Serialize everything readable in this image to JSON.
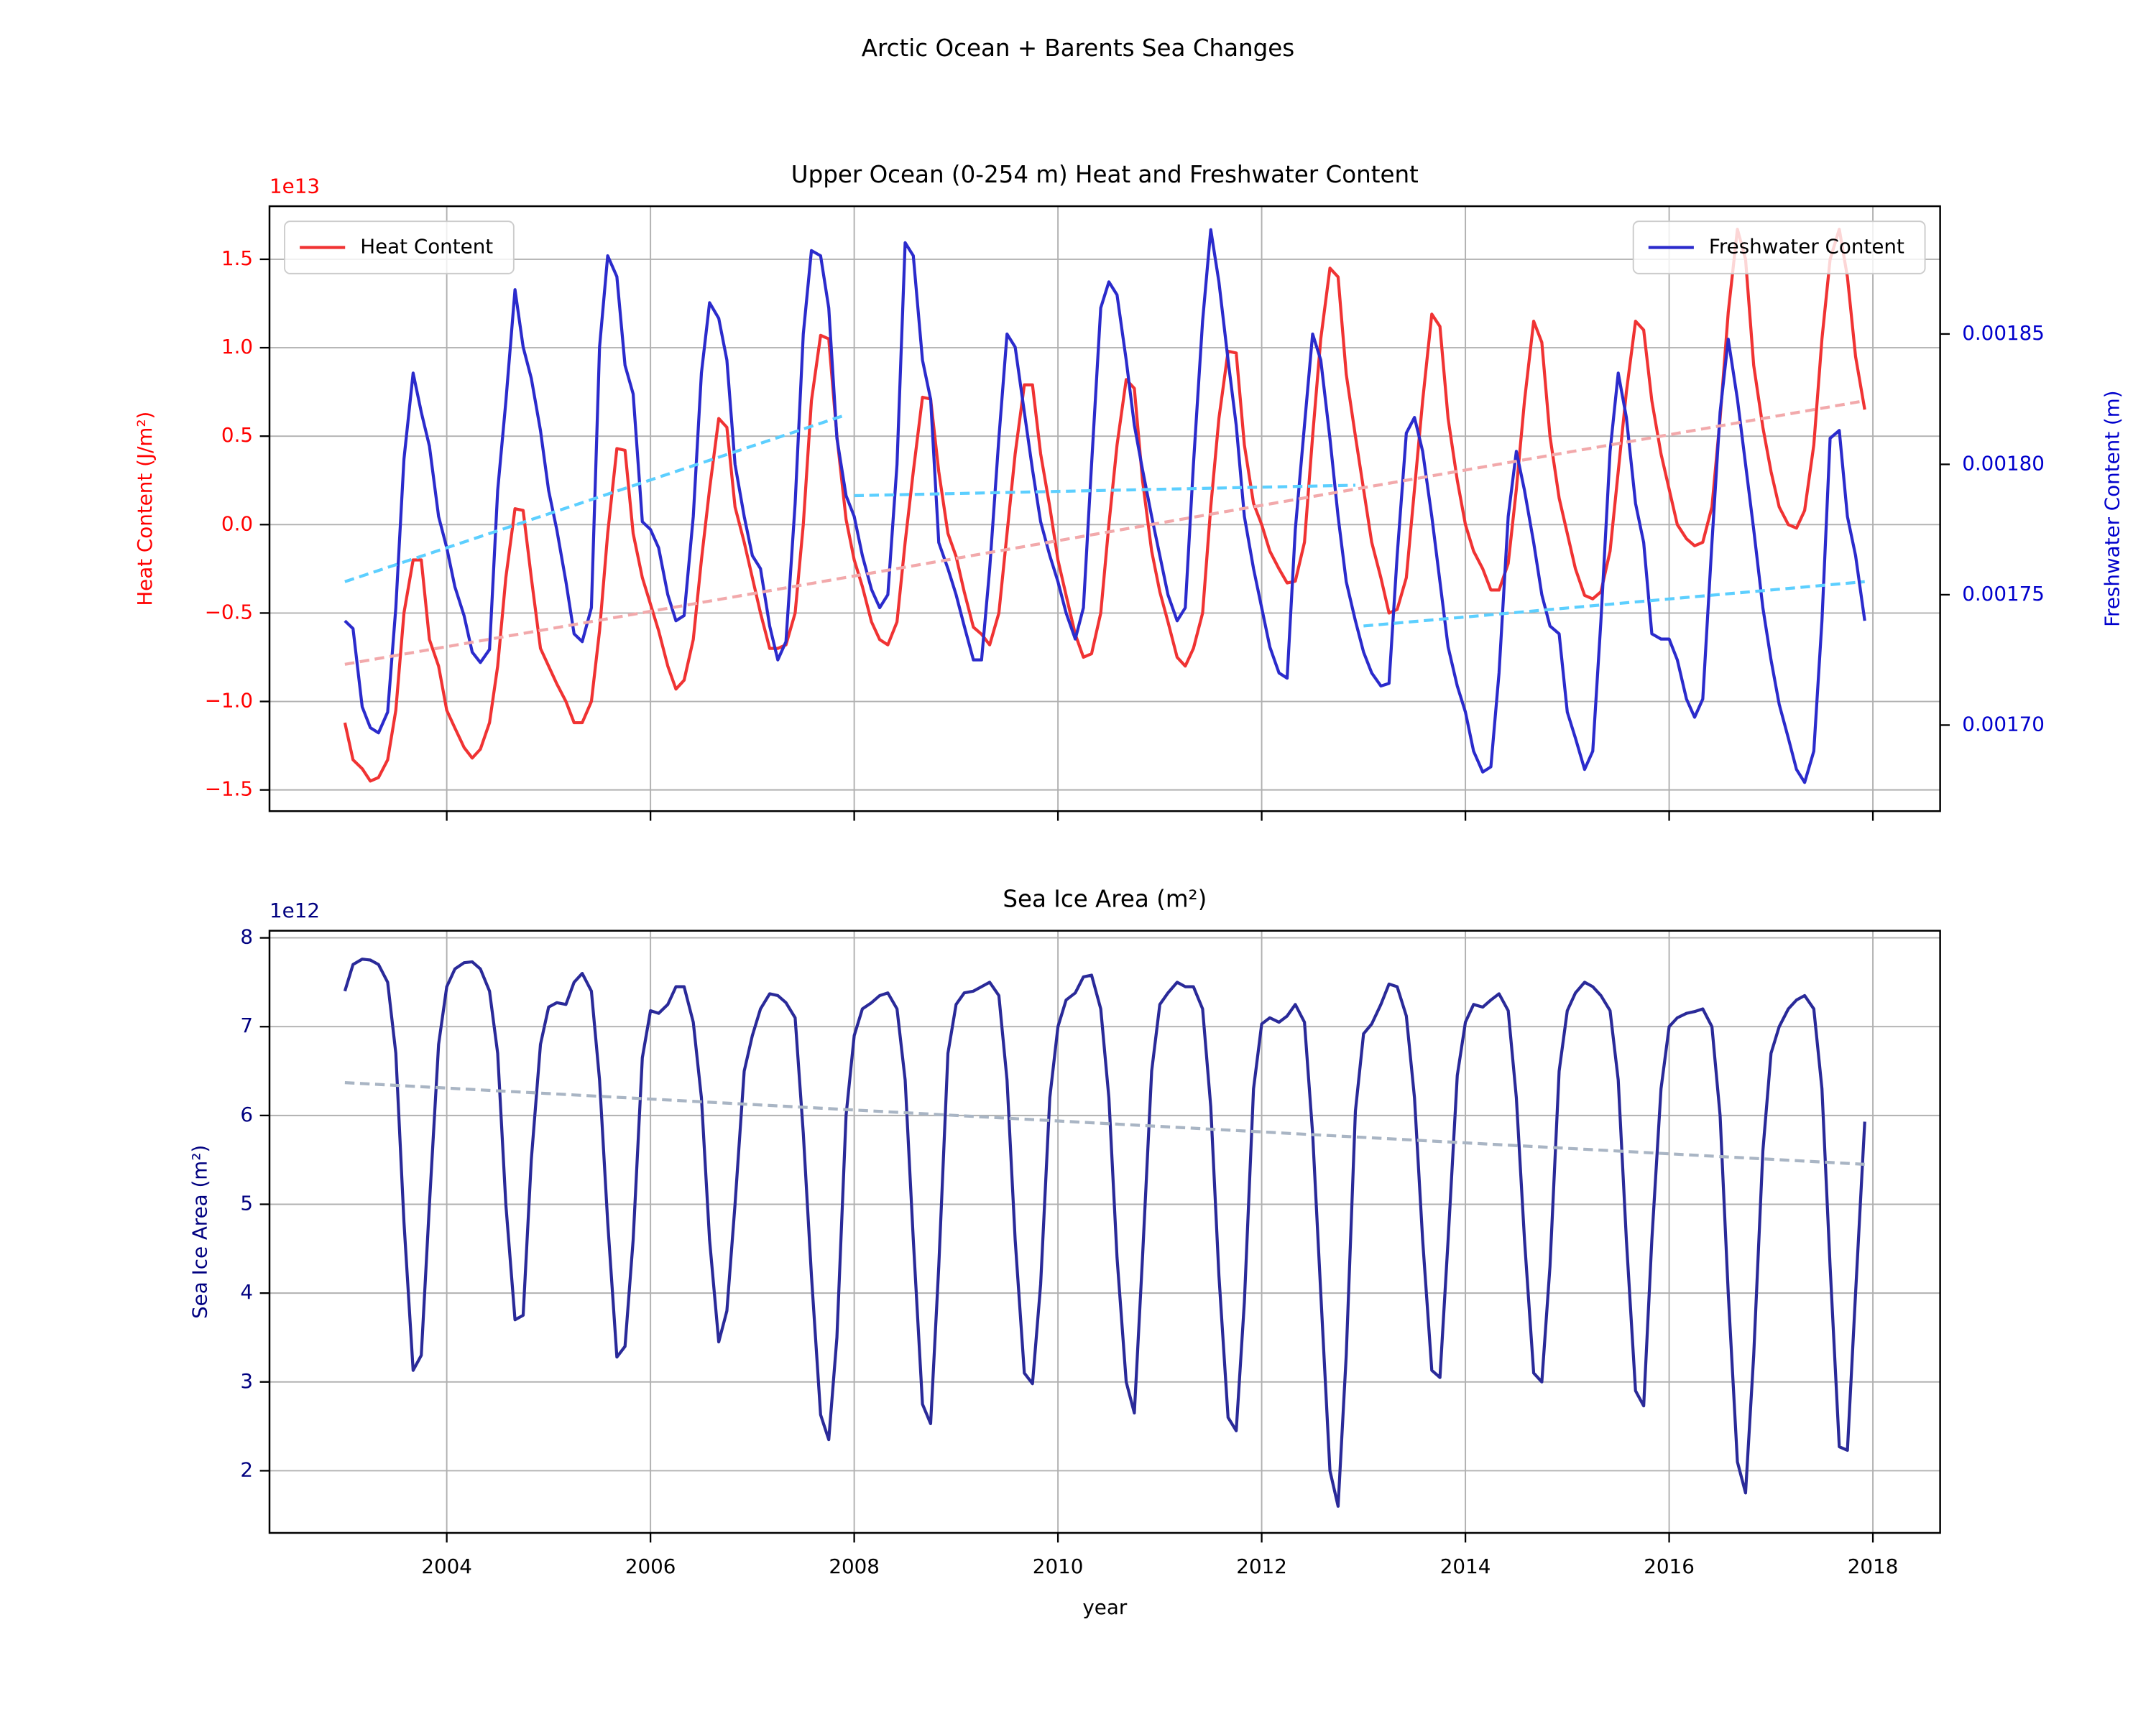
{
  "title": "Arctic Ocean + Barents Sea Changes",
  "chart_data": [
    {
      "type": "line",
      "title": "Upper Ocean (0-254 m) Heat and Freshwater Content",
      "ylabel": "Heat Content (J/m²)",
      "y_offset_label": "1e13",
      "y2label": "Freshwater Content (m)",
      "ycolor": "#ff0000",
      "y2color": "#0000cc",
      "grid": true,
      "show_xtick_labels": false,
      "xlim": [
        2002.26,
        2018.66
      ],
      "xticks": [
        2004,
        2006,
        2008,
        2010,
        2012,
        2014,
        2016,
        2018
      ],
      "ylim": [
        -1.62,
        1.8
      ],
      "yticks": [
        {
          "value": -1.5,
          "label": "−1.5"
        },
        {
          "value": -1,
          "label": "−1.0"
        },
        {
          "value": -0.5,
          "label": "−0.5"
        },
        {
          "value": 0,
          "label": "0.0"
        },
        0.5,
        {
          "value": 1,
          "label": "1.0"
        },
        1.5
      ],
      "y2lim": [
        0.001667,
        0.001899
      ],
      "y2ticks": [
        {
          "value": 0.0017,
          "label": "0.00170"
        },
        0.00175,
        {
          "value": 0.0018,
          "label": "0.00180"
        },
        0.00185
      ],
      "x": [
        2003.0,
        2003.08,
        2003.17,
        2003.25,
        2003.33,
        2003.42,
        2003.5,
        2003.58,
        2003.67,
        2003.75,
        2003.83,
        2003.92,
        2004.0,
        2004.08,
        2004.17,
        2004.25,
        2004.33,
        2004.42,
        2004.5,
        2004.58,
        2004.67,
        2004.75,
        2004.83,
        2004.92,
        2005.0,
        2005.08,
        2005.17,
        2005.25,
        2005.33,
        2005.42,
        2005.5,
        2005.58,
        2005.67,
        2005.75,
        2005.83,
        2005.92,
        2006.0,
        2006.08,
        2006.17,
        2006.25,
        2006.33,
        2006.42,
        2006.5,
        2006.58,
        2006.67,
        2006.75,
        2006.83,
        2006.92,
        2007.0,
        2007.08,
        2007.17,
        2007.25,
        2007.33,
        2007.42,
        2007.5,
        2007.58,
        2007.67,
        2007.75,
        2007.83,
        2007.92,
        2008.0,
        2008.08,
        2008.17,
        2008.25,
        2008.33,
        2008.42,
        2008.5,
        2008.58,
        2008.67,
        2008.75,
        2008.83,
        2008.92,
        2009.0,
        2009.08,
        2009.17,
        2009.25,
        2009.33,
        2009.42,
        2009.5,
        2009.58,
        2009.67,
        2009.75,
        2009.83,
        2009.92,
        2010.0,
        2010.08,
        2010.17,
        2010.25,
        2010.33,
        2010.42,
        2010.5,
        2010.58,
        2010.67,
        2010.75,
        2010.83,
        2010.92,
        2011.0,
        2011.08,
        2011.17,
        2011.25,
        2011.33,
        2011.42,
        2011.5,
        2011.58,
        2011.67,
        2011.75,
        2011.83,
        2011.92,
        2012.0,
        2012.08,
        2012.17,
        2012.25,
        2012.33,
        2012.42,
        2012.5,
        2012.58,
        2012.67,
        2012.75,
        2012.83,
        2012.92,
        2013.0,
        2013.08,
        2013.17,
        2013.25,
        2013.33,
        2013.42,
        2013.5,
        2013.58,
        2013.67,
        2013.75,
        2013.83,
        2013.92,
        2014.0,
        2014.08,
        2014.17,
        2014.25,
        2014.33,
        2014.42,
        2014.5,
        2014.58,
        2014.67,
        2014.75,
        2014.83,
        2014.92,
        2015.0,
        2015.08,
        2015.17,
        2015.25,
        2015.33,
        2015.42,
        2015.5,
        2015.58,
        2015.67,
        2015.75,
        2015.83,
        2015.92,
        2016.0,
        2016.08,
        2016.17,
        2016.25,
        2016.33,
        2016.42,
        2016.5,
        2016.58,
        2016.67,
        2016.75,
        2016.83,
        2016.92,
        2017.0,
        2017.08,
        2017.17,
        2017.25,
        2017.33,
        2017.42,
        2017.5,
        2017.58,
        2017.67,
        2017.75,
        2017.83,
        2017.92
      ],
      "series": [
        {
          "name": "Heat Content",
          "color": "#f03333",
          "legend": "upper left",
          "values": [
            -1.12,
            -1.33,
            -1.38,
            -1.45,
            -1.43,
            -1.33,
            -1.05,
            -0.5,
            -0.2,
            -0.2,
            -0.65,
            -0.8,
            -1.05,
            -1.15,
            -1.26,
            -1.32,
            -1.27,
            -1.12,
            -0.8,
            -0.3,
            0.09,
            0.08,
            -0.3,
            -0.7,
            -0.8,
            -0.9,
            -1.0,
            -1.12,
            -1.12,
            -1.0,
            -0.6,
            -0.05,
            0.43,
            0.42,
            -0.05,
            -0.3,
            -0.45,
            -0.6,
            -0.8,
            -0.93,
            -0.88,
            -0.65,
            -0.2,
            0.2,
            0.6,
            0.55,
            0.1,
            -0.1,
            -0.3,
            -0.5,
            -0.7,
            -0.7,
            -0.68,
            -0.5,
            0.0,
            0.7,
            1.07,
            1.05,
            0.5,
            0.03,
            -0.2,
            -0.35,
            -0.55,
            -0.65,
            -0.68,
            -0.55,
            -0.1,
            0.3,
            0.72,
            0.71,
            0.3,
            -0.05,
            -0.18,
            -0.38,
            -0.58,
            -0.62,
            -0.68,
            -0.5,
            -0.05,
            0.4,
            0.79,
            0.79,
            0.4,
            0.1,
            -0.2,
            -0.4,
            -0.62,
            -0.75,
            -0.73,
            -0.5,
            0.0,
            0.45,
            0.82,
            0.77,
            0.25,
            -0.15,
            -0.38,
            -0.55,
            -0.75,
            -0.8,
            -0.7,
            -0.5,
            0.1,
            0.6,
            0.98,
            0.97,
            0.45,
            0.12,
            0.0,
            -0.15,
            -0.25,
            -0.33,
            -0.32,
            -0.1,
            0.5,
            1.05,
            1.45,
            1.4,
            0.85,
            0.5,
            0.2,
            -0.1,
            -0.3,
            -0.5,
            -0.48,
            -0.3,
            0.2,
            0.7,
            1.19,
            1.12,
            0.6,
            0.25,
            0.0,
            -0.15,
            -0.25,
            -0.37,
            -0.37,
            -0.22,
            0.2,
            0.7,
            1.15,
            1.03,
            0.5,
            0.15,
            -0.05,
            -0.25,
            -0.4,
            -0.42,
            -0.38,
            -0.15,
            0.3,
            0.75,
            1.15,
            1.1,
            0.7,
            0.4,
            0.2,
            0.0,
            -0.08,
            -0.12,
            -0.1,
            0.1,
            0.6,
            1.2,
            1.67,
            1.5,
            0.9,
            0.55,
            0.3,
            0.1,
            0.0,
            -0.02,
            0.08,
            0.45,
            1.05,
            1.5,
            1.67,
            1.4,
            0.95,
            0.65
          ]
        },
        {
          "name": "Freshwater Content",
          "color": "#2b2bcc",
          "axis": "y2",
          "legend": "upper right",
          "values": [
            0.00174,
            0.001737,
            0.001707,
            0.001699,
            0.001697,
            0.001705,
            0.001745,
            0.001802,
            0.001835,
            0.00182,
            0.001807,
            0.00178,
            0.001768,
            0.001753,
            0.001742,
            0.001728,
            0.001724,
            0.001729,
            0.00179,
            0.001824,
            0.001867,
            0.001845,
            0.001833,
            0.001813,
            0.00179,
            0.001775,
            0.001755,
            0.001735,
            0.001732,
            0.001745,
            0.001845,
            0.00188,
            0.001872,
            0.001838,
            0.001827,
            0.001778,
            0.001775,
            0.001768,
            0.00175,
            0.00174,
            0.001742,
            0.00178,
            0.001835,
            0.001862,
            0.001856,
            0.00184,
            0.0018,
            0.00178,
            0.001765,
            0.00176,
            0.001738,
            0.001725,
            0.001732,
            0.001785,
            0.00185,
            0.001882,
            0.00188,
            0.00186,
            0.00181,
            0.001788,
            0.00178,
            0.001765,
            0.001752,
            0.001745,
            0.00175,
            0.0018,
            0.001885,
            0.00188,
            0.00184,
            0.001825,
            0.00177,
            0.00176,
            0.00175,
            0.001738,
            0.001725,
            0.001725,
            0.00176,
            0.00181,
            0.00185,
            0.001845,
            0.00182,
            0.001798,
            0.001778,
            0.001765,
            0.001755,
            0.001743,
            0.001733,
            0.001745,
            0.0018,
            0.00186,
            0.00187,
            0.001865,
            0.00184,
            0.001815,
            0.001798,
            0.00178,
            0.001765,
            0.00175,
            0.00174,
            0.001745,
            0.0018,
            0.001855,
            0.00189,
            0.00187,
            0.00184,
            0.001815,
            0.00178,
            0.00176,
            0.001745,
            0.00173,
            0.00172,
            0.001718,
            0.001775,
            0.001815,
            0.00185,
            0.00184,
            0.00181,
            0.00178,
            0.001755,
            0.00174,
            0.001728,
            0.00172,
            0.001715,
            0.001716,
            0.001765,
            0.001812,
            0.001818,
            0.001805,
            0.00178,
            0.001755,
            0.00173,
            0.001715,
            0.001705,
            0.00169,
            0.001682,
            0.001684,
            0.00172,
            0.00178,
            0.001805,
            0.00179,
            0.00177,
            0.00175,
            0.001738,
            0.001735,
            0.001705,
            0.001695,
            0.001683,
            0.00169,
            0.00174,
            0.001805,
            0.001835,
            0.001818,
            0.001785,
            0.00177,
            0.001735,
            0.001733,
            0.001733,
            0.001725,
            0.00171,
            0.001703,
            0.00171,
            0.00177,
            0.00182,
            0.001848,
            0.001825,
            0.0018,
            0.001775,
            0.001745,
            0.001725,
            0.001708,
            0.001695,
            0.001683,
            0.001678,
            0.00169,
            0.00174,
            0.00181,
            0.001813,
            0.00178,
            0.001765,
            0.00174
          ]
        },
        {
          "color": "#f2a9ab",
          "dashed": true,
          "x": [
            2003.0,
            2017.92
          ],
          "values": [
            -0.79,
            0.7
          ]
        },
        {
          "color": "#5ccfff",
          "dashed": true,
          "axis": "y2",
          "x": [
            2003.0,
            2007.92
          ],
          "values": [
            0.001755,
            0.001819
          ]
        },
        {
          "color": "#5ccfff",
          "dashed": true,
          "axis": "y2",
          "x": [
            2008.0,
            2012.92
          ],
          "values": [
            0.001788,
            0.001792
          ]
        },
        {
          "color": "#5ccfff",
          "dashed": true,
          "axis": "y2",
          "x": [
            2013.0,
            2017.92
          ],
          "values": [
            0.001738,
            0.001755
          ]
        }
      ]
    },
    {
      "type": "line",
      "title": "Sea Ice Area (m²)",
      "ylabel": "Sea Ice Area (m²)",
      "y_offset_label": "1e12",
      "ycolor": "#000080",
      "xlabel": "year",
      "grid": true,
      "show_xtick_labels": true,
      "xlim": [
        2002.26,
        2018.66
      ],
      "xticks": [
        2004,
        2006,
        2008,
        2010,
        2012,
        2014,
        2016,
        2018
      ],
      "ylim": [
        1.3,
        8.08
      ],
      "yticks": [
        2,
        3,
        4,
        5,
        6,
        7,
        8
      ],
      "x": [
        2003.0,
        2003.08,
        2003.17,
        2003.25,
        2003.33,
        2003.42,
        2003.5,
        2003.58,
        2003.67,
        2003.75,
        2003.83,
        2003.92,
        2004.0,
        2004.08,
        2004.17,
        2004.25,
        2004.33,
        2004.42,
        2004.5,
        2004.58,
        2004.67,
        2004.75,
        2004.83,
        2004.92,
        2005.0,
        2005.08,
        2005.17,
        2005.25,
        2005.33,
        2005.42,
        2005.5,
        2005.58,
        2005.67,
        2005.75,
        2005.83,
        2005.92,
        2006.0,
        2006.08,
        2006.17,
        2006.25,
        2006.33,
        2006.42,
        2006.5,
        2006.58,
        2006.67,
        2006.75,
        2006.83,
        2006.92,
        2007.0,
        2007.08,
        2007.17,
        2007.25,
        2007.33,
        2007.42,
        2007.5,
        2007.58,
        2007.67,
        2007.75,
        2007.83,
        2007.92,
        2008.0,
        2008.08,
        2008.17,
        2008.25,
        2008.33,
        2008.42,
        2008.5,
        2008.58,
        2008.67,
        2008.75,
        2008.83,
        2008.92,
        2009.0,
        2009.08,
        2009.17,
        2009.25,
        2009.33,
        2009.42,
        2009.5,
        2009.58,
        2009.67,
        2009.75,
        2009.83,
        2009.92,
        2010.0,
        2010.08,
        2010.17,
        2010.25,
        2010.33,
        2010.42,
        2010.5,
        2010.58,
        2010.67,
        2010.75,
        2010.83,
        2010.92,
        2011.0,
        2011.08,
        2011.17,
        2011.25,
        2011.33,
        2011.42,
        2011.5,
        2011.58,
        2011.67,
        2011.75,
        2011.83,
        2011.92,
        2012.0,
        2012.08,
        2012.17,
        2012.25,
        2012.33,
        2012.42,
        2012.5,
        2012.58,
        2012.67,
        2012.75,
        2012.83,
        2012.92,
        2013.0,
        2013.08,
        2013.17,
        2013.25,
        2013.33,
        2013.42,
        2013.5,
        2013.58,
        2013.67,
        2013.75,
        2013.83,
        2013.92,
        2014.0,
        2014.08,
        2014.17,
        2014.25,
        2014.33,
        2014.42,
        2014.5,
        2014.58,
        2014.67,
        2014.75,
        2014.83,
        2014.92,
        2015.0,
        2015.08,
        2015.17,
        2015.25,
        2015.33,
        2015.42,
        2015.5,
        2015.58,
        2015.67,
        2015.75,
        2015.83,
        2015.92,
        2016.0,
        2016.08,
        2016.17,
        2016.25,
        2016.33,
        2016.42,
        2016.5,
        2016.58,
        2016.67,
        2016.75,
        2016.83,
        2016.92,
        2017.0,
        2017.08,
        2017.17,
        2017.25,
        2017.33,
        2017.42,
        2017.5,
        2017.58,
        2017.67,
        2017.75,
        2017.83,
        2017.92
      ],
      "series": [
        {
          "color": "#2a2a99",
          "values": [
            7.4,
            7.7,
            7.76,
            7.75,
            7.7,
            7.5,
            6.7,
            4.8,
            3.13,
            3.3,
            5.0,
            6.8,
            7.45,
            7.65,
            7.72,
            7.73,
            7.65,
            7.4,
            6.7,
            5.0,
            3.7,
            3.75,
            5.5,
            6.8,
            7.22,
            7.27,
            7.25,
            7.5,
            7.6,
            7.4,
            6.4,
            4.8,
            3.28,
            3.4,
            4.6,
            6.65,
            7.18,
            7.15,
            7.25,
            7.45,
            7.45,
            7.05,
            6.2,
            4.6,
            3.45,
            3.8,
            5.0,
            6.5,
            6.9,
            7.2,
            7.37,
            7.35,
            7.27,
            7.1,
            5.8,
            4.2,
            2.63,
            2.35,
            3.5,
            6.0,
            6.9,
            7.2,
            7.27,
            7.35,
            7.38,
            7.2,
            6.4,
            4.6,
            2.75,
            2.53,
            4.3,
            6.7,
            7.25,
            7.38,
            7.4,
            7.45,
            7.5,
            7.35,
            6.4,
            4.6,
            3.1,
            2.98,
            4.1,
            6.2,
            7.0,
            7.3,
            7.38,
            7.56,
            7.58,
            7.2,
            6.2,
            4.4,
            3.0,
            2.65,
            4.4,
            6.5,
            7.25,
            7.38,
            7.5,
            7.45,
            7.45,
            7.2,
            6.1,
            4.2,
            2.6,
            2.45,
            3.9,
            6.3,
            7.03,
            7.1,
            7.05,
            7.12,
            7.25,
            7.05,
            5.8,
            4.0,
            2.0,
            1.6,
            3.3,
            6.05,
            6.92,
            7.03,
            7.25,
            7.48,
            7.45,
            7.12,
            6.2,
            4.6,
            3.13,
            3.05,
            4.6,
            6.45,
            7.05,
            7.25,
            7.22,
            7.3,
            7.37,
            7.18,
            6.2,
            4.6,
            3.1,
            3.0,
            4.3,
            6.5,
            7.18,
            7.38,
            7.5,
            7.45,
            7.35,
            7.18,
            6.4,
            4.6,
            2.9,
            2.73,
            4.6,
            6.3,
            7.0,
            7.1,
            7.15,
            7.17,
            7.2,
            7.0,
            6.0,
            4.0,
            2.1,
            1.75,
            3.3,
            5.6,
            6.7,
            7.0,
            7.2,
            7.3,
            7.35,
            7.2,
            6.3,
            4.3,
            2.27,
            2.23,
            4.0,
            5.93
          ]
        },
        {
          "color": "#a9b5c4",
          "dashed": true,
          "x": [
            2003.0,
            2017.92
          ],
          "values": [
            6.37,
            5.45
          ]
        }
      ]
    }
  ]
}
